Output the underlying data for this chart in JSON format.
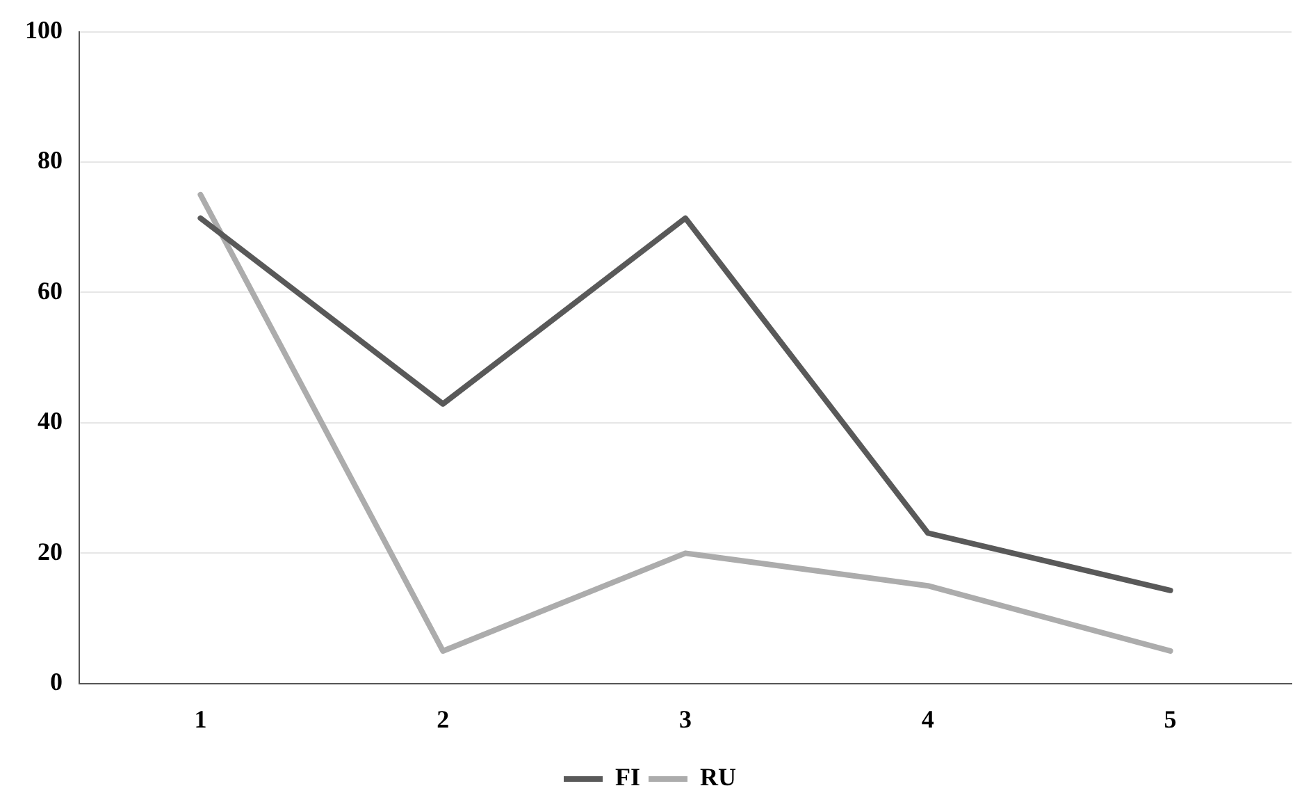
{
  "chart_data": {
    "type": "line",
    "categories": [
      "1",
      "2",
      "3",
      "4",
      "5"
    ],
    "series": [
      {
        "name": "FI",
        "color": "#595959",
        "values": [
          71.4,
          42.9,
          71.4,
          23.1,
          14.3
        ]
      },
      {
        "name": "RU",
        "color": "#acacac",
        "values": [
          75,
          5,
          20,
          15,
          5
        ]
      }
    ],
    "ylim": [
      0,
      100
    ],
    "yticks": [
      0,
      20,
      40,
      60,
      80,
      100
    ],
    "grid": "y",
    "legend": "bottom",
    "marker": "none",
    "line_style": "solid"
  }
}
